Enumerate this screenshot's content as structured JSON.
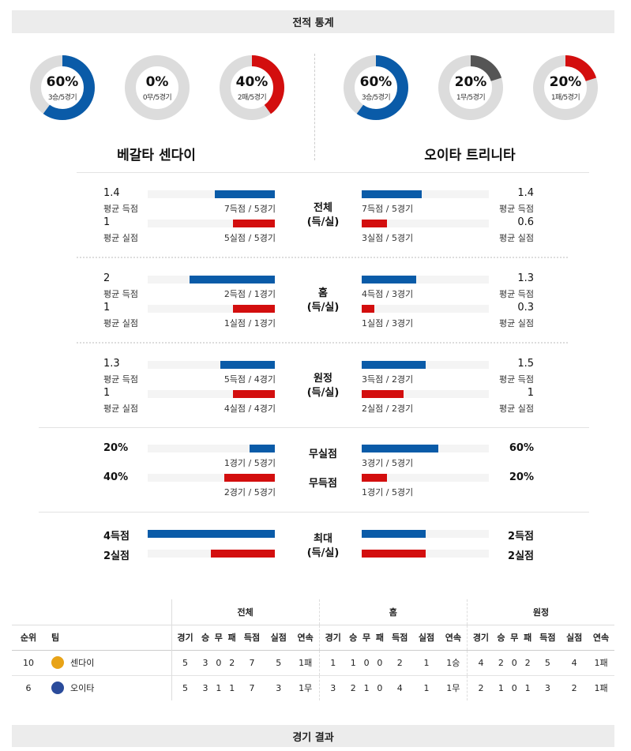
{
  "header_title": "전적 통계",
  "footer_title": "경기 결과",
  "colors": {
    "win": "#0a5ba8",
    "draw": "#555555",
    "loss": "#d30e0e",
    "track": "#dcdcdc"
  },
  "teams": [
    {
      "name": "베갈타 센다이",
      "donuts": [
        {
          "pct": "60%",
          "sub": "3승/5경기",
          "value": 60,
          "type": "win"
        },
        {
          "pct": "0%",
          "sub": "0무/5경기",
          "value": 0,
          "type": "draw"
        },
        {
          "pct": "40%",
          "sub": "2패/5경기",
          "value": 40,
          "type": "loss"
        }
      ]
    },
    {
      "name": "오이타 트리니타",
      "donuts": [
        {
          "pct": "60%",
          "sub": "3승/5경기",
          "value": 60,
          "type": "win"
        },
        {
          "pct": "20%",
          "sub": "1무/5경기",
          "value": 20,
          "type": "draw"
        },
        {
          "pct": "20%",
          "sub": "1패/5경기",
          "value": 20,
          "type": "loss"
        }
      ]
    }
  ],
  "stat_groups": [
    {
      "label1": "전체",
      "label2": "(득/실)",
      "left": {
        "score": {
          "value": "1.4",
          "label": "평균 득점",
          "caption": "7득점 / 5경기",
          "fill": 0.47
        },
        "concede": {
          "value": "1",
          "label": "평균 실점",
          "caption": "5실점 / 5경기",
          "fill": 0.33
        }
      },
      "right": {
        "score": {
          "value": "1.4",
          "label": "평균 득점",
          "caption": "7득점 / 5경기",
          "fill": 0.47
        },
        "concede": {
          "value": "0.6",
          "label": "평균 실점",
          "caption": "3실점 / 5경기",
          "fill": 0.2
        }
      }
    },
    {
      "label1": "홈",
      "label2": "(득/실)",
      "left": {
        "score": {
          "value": "2",
          "label": "평균 득점",
          "caption": "2득점 / 1경기",
          "fill": 0.67
        },
        "concede": {
          "value": "1",
          "label": "평균 실점",
          "caption": "1실점 / 1경기",
          "fill": 0.33
        }
      },
      "right": {
        "score": {
          "value": "1.3",
          "label": "평균 득점",
          "caption": "4득점 / 3경기",
          "fill": 0.43
        },
        "concede": {
          "value": "0.3",
          "label": "평균 실점",
          "caption": "1실점 / 3경기",
          "fill": 0.1
        }
      }
    },
    {
      "label1": "원정",
      "label2": "(득/실)",
      "left": {
        "score": {
          "value": "1.3",
          "label": "평균 득점",
          "caption": "5득점 / 4경기",
          "fill": 0.43
        },
        "concede": {
          "value": "1",
          "label": "평균 실점",
          "caption": "4실점 / 4경기",
          "fill": 0.33
        }
      },
      "right": {
        "score": {
          "value": "1.5",
          "label": "평균 득점",
          "caption": "3득점 / 2경기",
          "fill": 0.5
        },
        "concede": {
          "value": "1",
          "label": "평균 실점",
          "caption": "2실점 / 2경기",
          "fill": 0.33
        }
      }
    }
  ],
  "clean": {
    "label_clean": "무실점",
    "label_noscore": "무득점",
    "left": {
      "clean": {
        "value": "20%",
        "caption": "1경기 / 5경기",
        "fill": 0.2
      },
      "noscore": {
        "value": "40%",
        "caption": "2경기 / 5경기",
        "fill": 0.4
      }
    },
    "right": {
      "clean": {
        "value": "60%",
        "caption": "3경기 / 5경기",
        "fill": 0.6
      },
      "noscore": {
        "value": "20%",
        "caption": "1경기 / 5경기",
        "fill": 0.2
      }
    }
  },
  "max": {
    "label1": "최대",
    "label2": "(득/실)",
    "left": {
      "score": {
        "value": "4득점",
        "fill": 1.0
      },
      "concede": {
        "value": "2실점",
        "fill": 0.5
      }
    },
    "right": {
      "score": {
        "value": "2득점",
        "fill": 0.5
      },
      "concede": {
        "value": "2실점",
        "fill": 0.5
      }
    }
  },
  "table": {
    "groups": [
      "전체",
      "홈",
      "원정"
    ],
    "headers": [
      "순위",
      "팀"
    ],
    "sub_headers": [
      "경기",
      "승",
      "무",
      "패",
      "득점",
      "실점",
      "연속"
    ],
    "rows": [
      {
        "rank": "10",
        "team": "센다이",
        "emblem_color": "#e8a317",
        "all": [
          "5",
          "3",
          "0",
          "2",
          "7",
          "5",
          "1패"
        ],
        "home": [
          "1",
          "1",
          "0",
          "0",
          "2",
          "1",
          "1승"
        ],
        "away": [
          "4",
          "2",
          "0",
          "2",
          "5",
          "4",
          "1패"
        ]
      },
      {
        "rank": "6",
        "team": "오이타",
        "emblem_color": "#2a4b9b",
        "all": [
          "5",
          "3",
          "1",
          "1",
          "7",
          "3",
          "1무"
        ],
        "home": [
          "3",
          "2",
          "1",
          "0",
          "4",
          "1",
          "1무"
        ],
        "away": [
          "2",
          "1",
          "0",
          "1",
          "3",
          "2",
          "1패"
        ]
      }
    ]
  }
}
